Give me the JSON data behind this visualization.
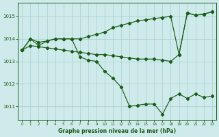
{
  "background_color": "#ceeaea",
  "grid_color": "#aed4d4",
  "line_color": "#1a5c1a",
  "title": "Graphe pression niveau de la mer (hPa)",
  "ylabel_ticks": [
    1011,
    1012,
    1013,
    1014,
    1015
  ],
  "xlim": [
    -0.5,
    23.5
  ],
  "ylim": [
    1010.4,
    1015.6
  ],
  "xticks": [
    0,
    1,
    2,
    3,
    4,
    5,
    6,
    7,
    8,
    9,
    10,
    11,
    12,
    13,
    14,
    15,
    16,
    17,
    18,
    19,
    20,
    21,
    22,
    23
  ],
  "series1_x": [
    0,
    1,
    2,
    3,
    4,
    5,
    6,
    7,
    8,
    9,
    10,
    11,
    12,
    13,
    14,
    15,
    16,
    17,
    18,
    19,
    20,
    21,
    22,
    23
  ],
  "series1_y": [
    1013.5,
    1014.0,
    1013.85,
    1013.9,
    1014.0,
    1014.0,
    1014.0,
    1014.0,
    1014.1,
    1014.2,
    1014.3,
    1014.5,
    1014.6,
    1014.7,
    1014.8,
    1014.85,
    1014.9,
    1014.95,
    1015.0,
    1013.3,
    1015.15,
    1015.05,
    1015.1,
    1015.2
  ],
  "series2_x": [
    0,
    1,
    2,
    3,
    4,
    5,
    6,
    7,
    8,
    9,
    10,
    11,
    12,
    13,
    14,
    15,
    16,
    17,
    18,
    19,
    20,
    21,
    22,
    23
  ],
  "series2_y": [
    1013.5,
    1013.7,
    1013.65,
    1013.6,
    1013.55,
    1013.5,
    1013.45,
    1013.4,
    1013.35,
    1013.3,
    1013.3,
    1013.25,
    1013.2,
    1013.15,
    1013.1,
    1013.1,
    1013.1,
    1013.05,
    1013.0,
    1013.3,
    1015.15,
    1015.05,
    1015.1,
    1015.2
  ],
  "series3_x": [
    0,
    1,
    2,
    3,
    4,
    5,
    6,
    7,
    8,
    9,
    10,
    11,
    12,
    13,
    14,
    15,
    16,
    17,
    18,
    19,
    20,
    21,
    22,
    23
  ],
  "series3_y": [
    1013.5,
    1014.0,
    1013.7,
    1013.9,
    1014.0,
    1014.0,
    1014.0,
    1013.2,
    1013.05,
    1013.0,
    1012.55,
    1012.25,
    1011.85,
    1011.0,
    1011.05,
    1011.1,
    1011.1,
    1010.65,
    1011.35,
    1011.55,
    1011.35,
    1011.55,
    1011.4,
    1011.45
  ],
  "figwidth": 3.2,
  "figheight": 2.0,
  "dpi": 100
}
